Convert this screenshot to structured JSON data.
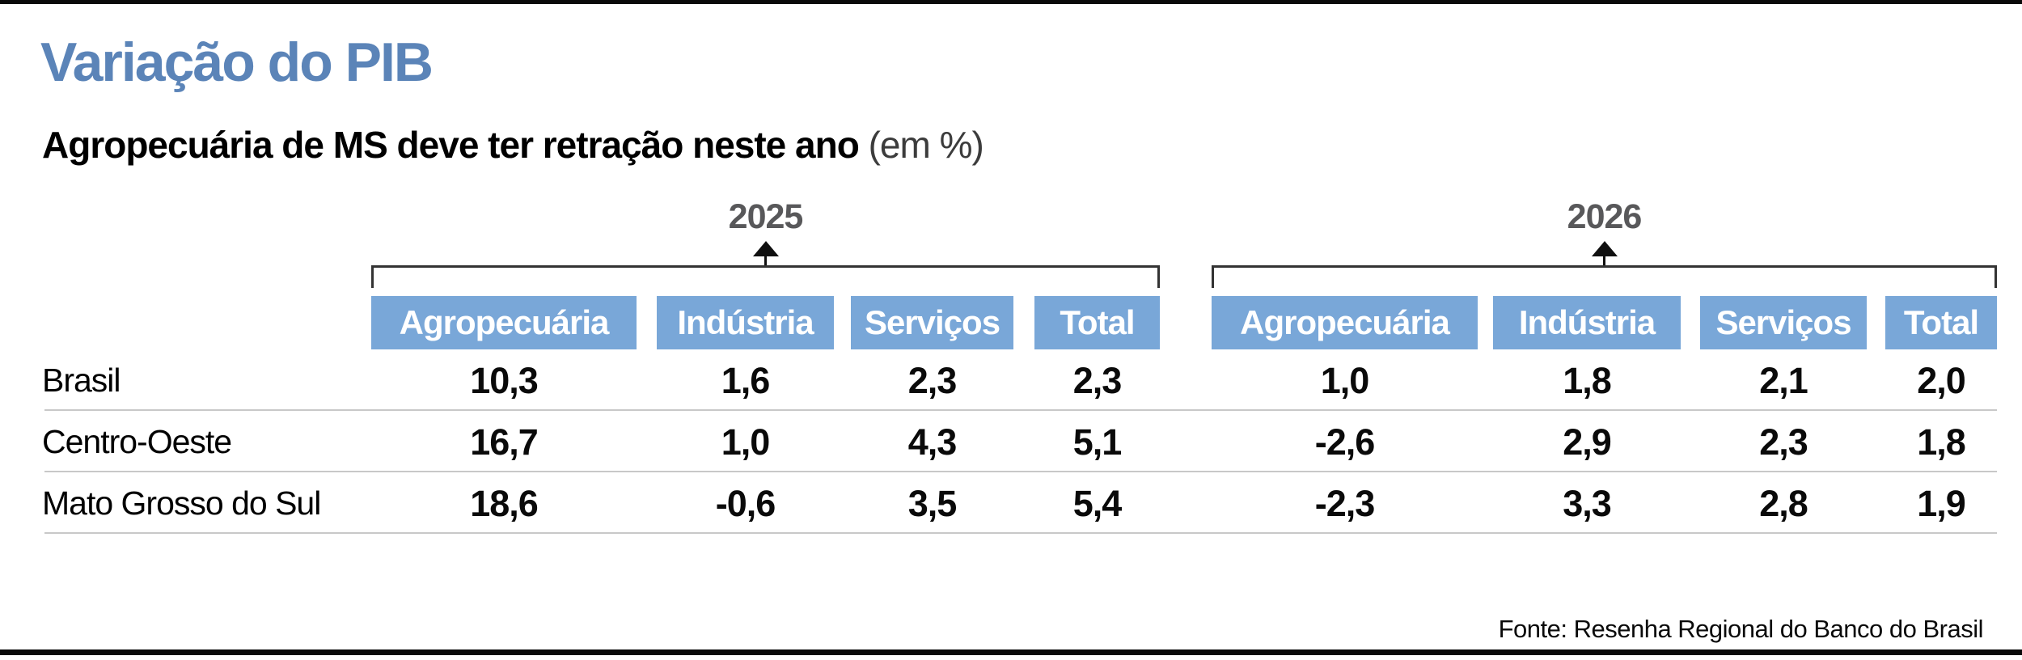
{
  "title": "Variação do PIB",
  "subtitle": {
    "bold": "Agropecuária de MS deve ter retração neste ano",
    "note": " (em %)"
  },
  "groups": [
    {
      "year": "2025",
      "columns": [
        "Agropecuária",
        "Indústria",
        "Serviços",
        "Total"
      ]
    },
    {
      "year": "2026",
      "columns": [
        "Agropecuária",
        "Indústria",
        "Serviços",
        "Total"
      ]
    }
  ],
  "rows": [
    {
      "label": "Brasil",
      "values": [
        "10,3",
        "1,6",
        "2,3",
        "2,3",
        "1,0",
        "1,8",
        "2,1",
        "2,0"
      ]
    },
    {
      "label": "Centro-Oeste",
      "values": [
        "16,7",
        "1,0",
        "4,3",
        "5,1",
        "-2,6",
        "2,9",
        "2,3",
        "1,8"
      ]
    },
    {
      "label": "Mato Grosso do Sul",
      "values": [
        "18,6",
        "-0,6",
        "3,5",
        "5,4",
        "-2,3",
        "3,3",
        "2,8",
        "1,9"
      ]
    }
  ],
  "source": "Fonte: Resenha Regional do Banco do Brasil",
  "colors": {
    "title_blue": "#5b84b8",
    "header_blue": "#79a7d8",
    "year_gray": "#58585a",
    "separator_gray": "#c8c8c8",
    "rule_black": "#0a0a0a"
  },
  "chart_data": {
    "type": "table",
    "title": "Variação do PIB",
    "subtitle": "Agropecuária de MS deve ter retração neste ano",
    "unit": "em %",
    "column_groups": [
      "2025",
      "2026"
    ],
    "columns": [
      "Agropecuária",
      "Indústria",
      "Serviços",
      "Total"
    ],
    "rows": [
      {
        "region": "Brasil",
        "y2025": {
          "agropecuaria": 10.3,
          "industria": 1.6,
          "servicos": 2.3,
          "total": 2.3
        },
        "y2026": {
          "agropecuaria": 1.0,
          "industria": 1.8,
          "servicos": 2.1,
          "total": 2.0
        }
      },
      {
        "region": "Centro-Oeste",
        "y2025": {
          "agropecuaria": 16.7,
          "industria": 1.0,
          "servicos": 4.3,
          "total": 5.1
        },
        "y2026": {
          "agropecuaria": -2.6,
          "industria": 2.9,
          "servicos": 2.3,
          "total": 1.8
        }
      },
      {
        "region": "Mato Grosso do Sul",
        "y2025": {
          "agropecuaria": 18.6,
          "industria": -0.6,
          "servicos": 3.5,
          "total": 5.4
        },
        "y2026": {
          "agropecuaria": -2.3,
          "industria": 3.3,
          "servicos": 2.8,
          "total": 1.9
        }
      }
    ],
    "source": "Fonte: Resenha Regional do Banco do Brasil"
  }
}
